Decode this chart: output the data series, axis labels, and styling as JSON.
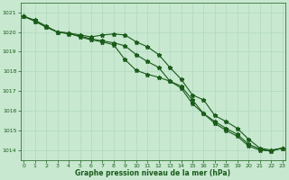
{
  "x": [
    0,
    1,
    2,
    3,
    4,
    5,
    6,
    7,
    8,
    9,
    10,
    11,
    12,
    13,
    14,
    15,
    16,
    17,
    18,
    19,
    20,
    21,
    22,
    23
  ],
  "line1": [
    1020.8,
    1020.6,
    1020.3,
    1020.0,
    1019.9,
    1019.8,
    1019.65,
    1019.55,
    1019.45,
    1019.3,
    1018.85,
    1018.5,
    1018.2,
    1017.5,
    1017.15,
    1016.35,
    1015.85,
    1015.35,
    1015.0,
    1014.7,
    1014.2,
    1014.0,
    1013.95,
    1014.1
  ],
  "line2": [
    1020.8,
    1020.55,
    1020.25,
    1020.0,
    1019.95,
    1019.85,
    1019.75,
    1019.85,
    1019.9,
    1019.85,
    1019.5,
    1019.25,
    1018.85,
    1018.2,
    1017.6,
    1016.8,
    1016.55,
    1015.75,
    1015.45,
    1015.1,
    1014.55,
    1014.1,
    1014.0,
    1014.1
  ],
  "line3": [
    1020.8,
    1020.55,
    1020.25,
    1020.0,
    1019.95,
    1019.75,
    1019.6,
    1019.5,
    1019.35,
    1018.6,
    1018.05,
    1017.85,
    1017.7,
    1017.5,
    1017.25,
    1016.55,
    1015.85,
    1015.45,
    1015.1,
    1014.8,
    1014.3,
    1014.05,
    1013.95,
    1014.1
  ],
  "line_color": "#1a5c1a",
  "bg_color": "#c8e8d0",
  "grid_major_color": "#b0d8c0",
  "grid_minor_color": "#d0edd8",
  "text_color": "#1a5c1a",
  "xlabel": "Graphe pression niveau de la mer (hPa)",
  "ylim_min": 1013.5,
  "ylim_max": 1021.5,
  "yticks": [
    1014,
    1015,
    1016,
    1017,
    1018,
    1019,
    1020,
    1021
  ],
  "xticks": [
    0,
    1,
    2,
    3,
    4,
    5,
    6,
    7,
    8,
    9,
    10,
    11,
    12,
    13,
    14,
    15,
    16,
    17,
    18,
    19,
    20,
    21,
    22,
    23
  ],
  "marker": "*",
  "markersize": 3.5,
  "linewidth": 0.8
}
